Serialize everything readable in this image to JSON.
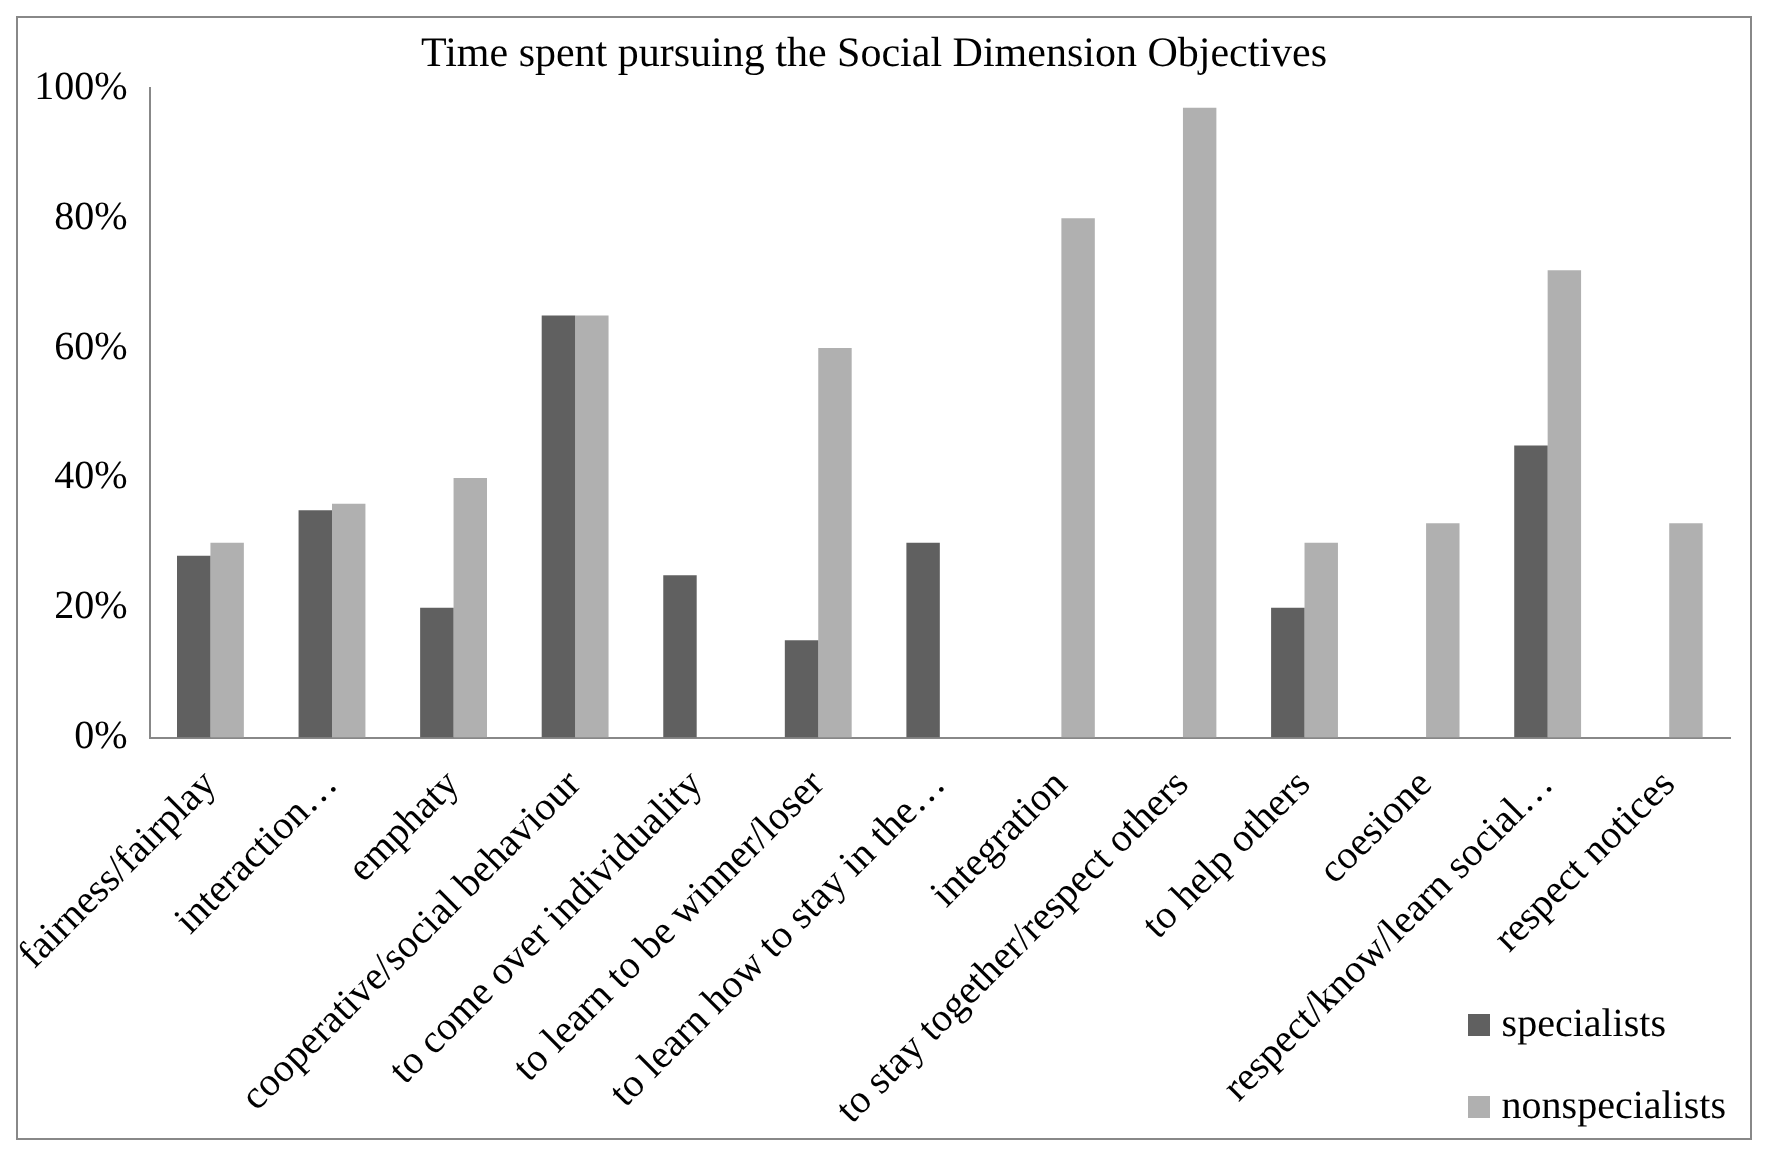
{
  "chart_data": {
    "type": "bar",
    "title": "Time spent pursuing the Social Dimension Objectives",
    "categories": [
      "fairness/fairplay",
      "interaction…",
      "emphaty",
      "cooperative/social behaviour",
      "to come over individuality",
      "to learn to be winner/loser",
      "to learn how to stay in the…",
      "integration",
      "to stay together/respect others",
      "to help others",
      "coesione",
      "respect/know/learn social…",
      "respect notices"
    ],
    "series": [
      {
        "name": "specialists",
        "color": "#606060",
        "values": [
          28,
          35,
          20,
          65,
          25,
          15,
          30,
          null,
          null,
          20,
          null,
          45,
          null
        ]
      },
      {
        "name": "nonspecialists",
        "color": "#b0b0b0",
        "values": [
          30,
          36,
          40,
          65,
          null,
          60,
          null,
          80,
          97,
          30,
          33,
          72,
          33
        ]
      }
    ],
    "ylim": [
      0,
      100
    ],
    "yticks": [
      {
        "value": 0,
        "label": "0%"
      },
      {
        "value": 20,
        "label": "20%"
      },
      {
        "value": 40,
        "label": "40%"
      },
      {
        "value": 60,
        "label": "60%"
      },
      {
        "value": 80,
        "label": "80%"
      },
      {
        "value": 100,
        "label": "100%"
      }
    ],
    "grid": false,
    "legend": "bottom right"
  }
}
